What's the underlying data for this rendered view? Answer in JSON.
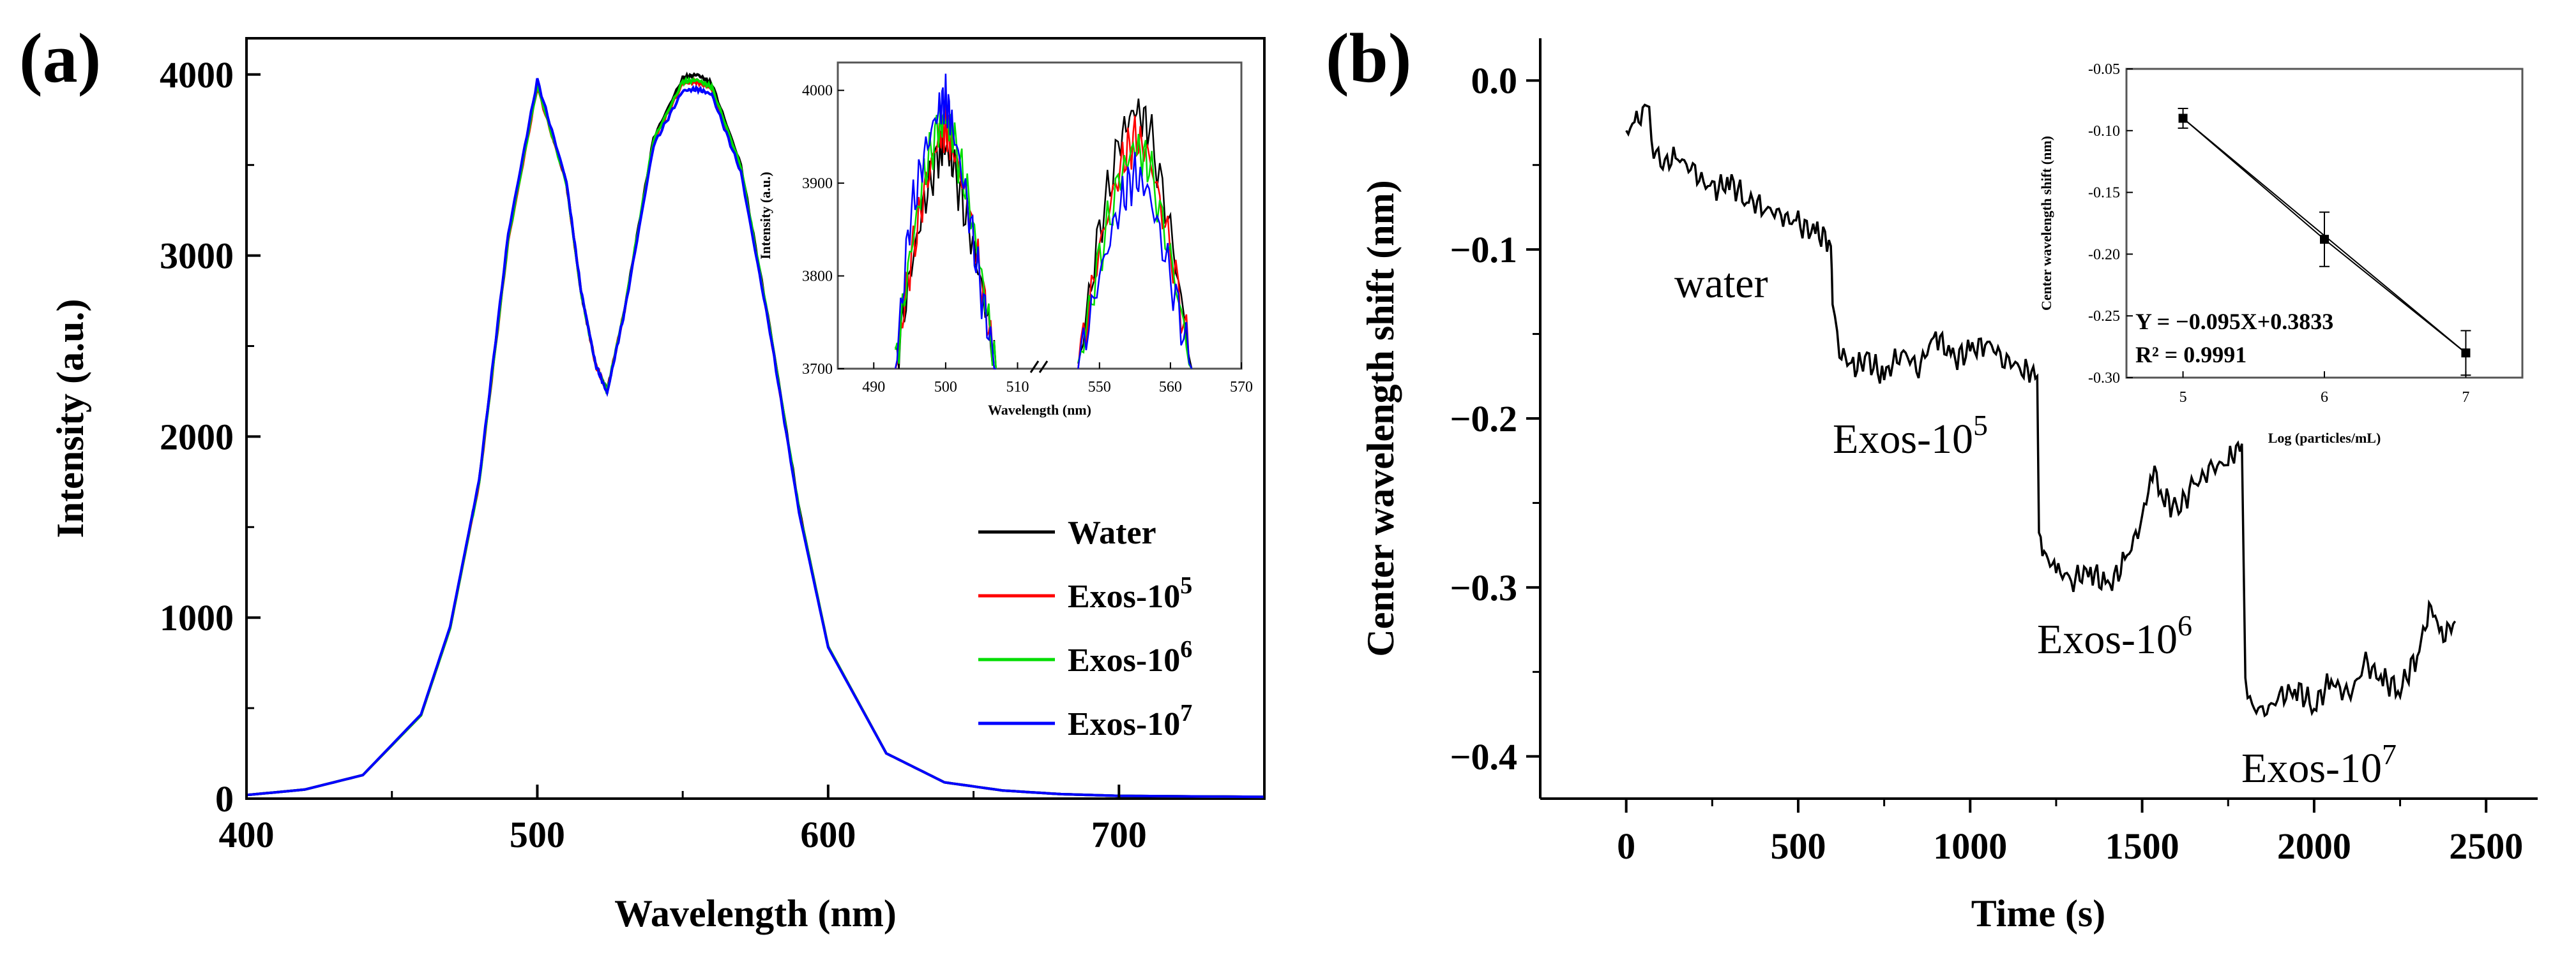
{
  "colors": {
    "water": "#000000",
    "exos5": "#ff0000",
    "exos6": "#00dd00",
    "exos7": "#0000ff",
    "axis": "#000000"
  },
  "panel_labels": {
    "a": "(a)",
    "b": "(b)"
  },
  "chart_data": [
    {
      "id": "a",
      "type": "line",
      "title": "",
      "xlabel": "Wavelength (nm)",
      "ylabel": "Intensity (a.u.)",
      "xlim": [
        400,
        750
      ],
      "ylim": [
        0,
        4200
      ],
      "xticks": [
        400,
        500,
        600,
        700
      ],
      "xtick_labels": [
        "400",
        "500",
        "600",
        "700"
      ],
      "yticks": [
        0,
        1000,
        2000,
        3000,
        4000
      ],
      "ytick_labels": [
        "0",
        "1000",
        "2000",
        "3000",
        "4000"
      ],
      "legend": {
        "position": "lower-right",
        "entries": [
          {
            "base": "Water",
            "sup": ""
          },
          {
            "base": "Exos-10",
            "sup": "5"
          },
          {
            "base": "Exos-10",
            "sup": "6"
          },
          {
            "base": "Exos-10",
            "sup": "7"
          }
        ]
      },
      "series": [
        {
          "name": "Water",
          "x": [
            400,
            420,
            440,
            460,
            470,
            480,
            490,
            500,
            510,
            515,
            520,
            524,
            530,
            540,
            550,
            555,
            560,
            570,
            580,
            590,
            600,
            620,
            640,
            660,
            680,
            700,
            750
          ],
          "values": [
            20,
            50,
            130,
            460,
            940,
            1750,
            3100,
            3950,
            3400,
            2800,
            2400,
            2250,
            2700,
            3650,
            3980,
            4000,
            3950,
            3500,
            2600,
            1600,
            840,
            250,
            90,
            45,
            25,
            15,
            10
          ]
        },
        {
          "name": "Exos-10^5",
          "x": [
            400,
            420,
            440,
            460,
            470,
            480,
            490,
            500,
            510,
            515,
            520,
            524,
            530,
            540,
            550,
            555,
            560,
            570,
            580,
            590,
            600,
            620,
            640,
            660,
            680,
            700,
            750
          ],
          "values": [
            20,
            50,
            130,
            460,
            940,
            1740,
            3080,
            3930,
            3400,
            2800,
            2400,
            2250,
            2700,
            3630,
            3950,
            3960,
            3920,
            3480,
            2590,
            1590,
            840,
            250,
            90,
            45,
            25,
            15,
            10
          ]
        },
        {
          "name": "Exos-10^6",
          "x": [
            400,
            420,
            440,
            460,
            470,
            480,
            490,
            500,
            510,
            515,
            520,
            524,
            530,
            540,
            550,
            555,
            560,
            570,
            580,
            590,
            600,
            620,
            640,
            660,
            680,
            700,
            750
          ],
          "values": [
            20,
            50,
            130,
            460,
            940,
            1745,
            3090,
            3940,
            3400,
            2800,
            2400,
            2250,
            2700,
            3640,
            3960,
            3970,
            3930,
            3490,
            2595,
            1595,
            840,
            250,
            90,
            45,
            25,
            15,
            10
          ]
        },
        {
          "name": "Exos-10^7",
          "x": [
            400,
            420,
            440,
            460,
            470,
            480,
            490,
            500,
            510,
            515,
            520,
            524,
            530,
            540,
            550,
            555,
            560,
            570,
            580,
            590,
            600,
            620,
            640,
            660,
            680,
            700,
            750
          ],
          "values": [
            20,
            50,
            130,
            465,
            950,
            1760,
            3120,
            3970,
            3410,
            2810,
            2400,
            2240,
            2690,
            3610,
            3910,
            3920,
            3890,
            3460,
            2580,
            1580,
            835,
            250,
            90,
            45,
            25,
            15,
            10
          ]
        }
      ],
      "inset": {
        "type": "line",
        "xlabel": "Wavelength (nm)",
        "ylabel": "Intensity (a.u.)",
        "ylim": [
          3700,
          4030
        ],
        "break": "broken x-axis between 510 and 545",
        "xticks_left": [
          490,
          500,
          510
        ],
        "xticks_right": [
          550,
          560,
          570
        ],
        "xtick_labels": [
          "490",
          "500",
          "510",
          "550",
          "560",
          "570"
        ],
        "yticks": [
          3700,
          3800,
          3900,
          4000
        ],
        "ytick_labels": [
          "3700",
          "3800",
          "3900",
          "4000"
        ],
        "series": [
          {
            "name": "Water",
            "left_x": [
              493,
              495,
              497,
              499,
              500,
              501,
              503,
              505,
              507
            ],
            "left": [
              3700,
              3800,
              3880,
              3930,
              3940,
              3920,
              3860,
              3790,
              3700
            ],
            "right_x": [
              547,
              550,
              553,
              555,
              557,
              560,
              563
            ],
            "right": [
              3700,
              3850,
              3950,
              3980,
              3960,
              3850,
              3700
            ]
          },
          {
            "name": "Exos-10^5",
            "left_x": [
              493,
              495,
              497,
              499,
              500,
              501,
              503,
              505,
              507
            ],
            "left": [
              3700,
              3810,
              3890,
              3950,
              3960,
              3940,
              3880,
              3790,
              3700
            ],
            "right_x": [
              547,
              550,
              553,
              555,
              557,
              560,
              563
            ],
            "right": [
              3700,
              3830,
              3920,
              3950,
              3930,
              3830,
              3700
            ]
          },
          {
            "name": "Exos-10^6",
            "left_x": [
              493,
              495,
              497,
              499,
              500,
              501,
              503,
              505,
              507
            ],
            "left": [
              3700,
              3820,
              3910,
              3960,
              3970,
              3950,
              3890,
              3800,
              3700
            ],
            "right_x": [
              547,
              550,
              553,
              555,
              557,
              560,
              563
            ],
            "right": [
              3700,
              3820,
              3910,
              3940,
              3920,
              3820,
              3700
            ]
          },
          {
            "name": "Exos-10^7",
            "left_x": [
              493,
              495,
              497,
              499,
              500,
              501,
              503,
              505,
              507
            ],
            "left": [
              3700,
              3860,
              3930,
              3980,
              3990,
              3960,
              3880,
              3780,
              3700
            ],
            "right_x": [
              547,
              550,
              553,
              555,
              557,
              560,
              563
            ],
            "right": [
              3700,
              3800,
              3880,
              3910,
              3890,
              3800,
              3700
            ]
          }
        ]
      }
    },
    {
      "id": "b",
      "type": "line",
      "title": "",
      "xlabel": "Time (s)",
      "ylabel": "Center wavelength shift (nm)",
      "xlim": [
        -250,
        2650
      ],
      "ylim": [
        -0.425,
        0.025
      ],
      "xticks": [
        0,
        500,
        1000,
        1500,
        2000,
        2500
      ],
      "xtick_labels": [
        "0",
        "500",
        "1000",
        "1500",
        "2000",
        "2500"
      ],
      "yticks": [
        0.0,
        -0.1,
        -0.2,
        -0.3,
        -0.4
      ],
      "ytick_labels": [
        "0.0",
        "−0.1",
        "−0.2",
        "−0.3",
        "−0.4"
      ],
      "series": [
        {
          "name": "shift",
          "x": [
            0,
            30,
            60,
            80,
            100,
            150,
            200,
            250,
            300,
            350,
            400,
            450,
            500,
            550,
            595,
            600,
            620,
            660,
            700,
            750,
            800,
            850,
            900,
            950,
            1000,
            1050,
            1100,
            1150,
            1195,
            1200,
            1215,
            1250,
            1300,
            1350,
            1400,
            1450,
            1500,
            1530,
            1560,
            1600,
            1650,
            1700,
            1750,
            1790,
            1800,
            1820,
            1850,
            1900,
            1950,
            2000,
            2050,
            2100,
            2150,
            2200,
            2250,
            2300,
            2340,
            2370,
            2410
          ],
          "values": [
            -0.03,
            -0.025,
            -0.015,
            -0.04,
            -0.05,
            -0.045,
            -0.055,
            -0.065,
            -0.06,
            -0.07,
            -0.075,
            -0.08,
            -0.085,
            -0.09,
            -0.095,
            -0.13,
            -0.16,
            -0.17,
            -0.165,
            -0.175,
            -0.16,
            -0.17,
            -0.15,
            -0.165,
            -0.16,
            -0.155,
            -0.165,
            -0.17,
            -0.175,
            -0.27,
            -0.28,
            -0.29,
            -0.295,
            -0.29,
            -0.3,
            -0.285,
            -0.26,
            -0.23,
            -0.245,
            -0.255,
            -0.24,
            -0.23,
            -0.225,
            -0.215,
            -0.355,
            -0.37,
            -0.375,
            -0.365,
            -0.36,
            -0.37,
            -0.355,
            -0.365,
            -0.345,
            -0.355,
            -0.36,
            -0.34,
            -0.31,
            -0.33,
            -0.32
          ]
        }
      ],
      "annotations": [
        {
          "base": "water",
          "sup": "",
          "x": 150,
          "y": -0.11
        },
        {
          "base": "Exos-10",
          "sup": "5",
          "x": 620,
          "y": -0.205
        },
        {
          "base": "Exos-10",
          "sup": "6",
          "x": 1230,
          "y": -0.32
        },
        {
          "base": "Exos-10",
          "sup": "7",
          "x": 1820,
          "y": -0.395
        }
      ],
      "inset": {
        "type": "scatter",
        "xlabel": "Log (particles/mL)",
        "ylabel": "Center wavelength shift (nm)",
        "xlim": [
          4.6,
          7.4
        ],
        "ylim": [
          -0.3,
          -0.05
        ],
        "xticks": [
          5,
          6,
          7
        ],
        "xtick_labels": [
          "5",
          "6",
          "7"
        ],
        "yticks": [
          -0.05,
          -0.1,
          -0.15,
          -0.2,
          -0.25,
          -0.3
        ],
        "ytick_labels": [
          "-0.05",
          "-0.10",
          "-0.15",
          "-0.20",
          "-0.25",
          "-0.30"
        ],
        "points": [
          {
            "x": 5,
            "y": -0.09,
            "err": 0.008
          },
          {
            "x": 6,
            "y": -0.188,
            "err": 0.022
          },
          {
            "x": 7,
            "y": -0.28,
            "err": 0.018
          }
        ],
        "fit": {
          "slope": -0.095,
          "intercept": 0.3833
        },
        "equation": "Y = −0.095X+0.3833",
        "r2": "R² = 0.9991"
      }
    }
  ]
}
